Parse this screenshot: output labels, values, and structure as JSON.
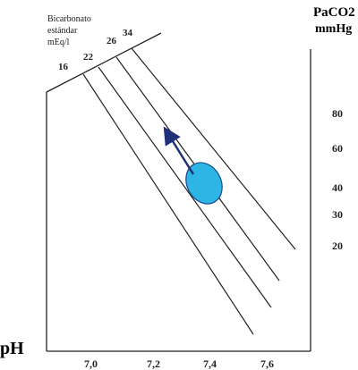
{
  "labels": {
    "paco2_title_line1": "PaCO2",
    "paco2_title_line2": "mmHg",
    "ph_title": "pH",
    "bicarbonate_title_line1": "Bicarbonato",
    "bicarbonate_title_line2": "estándar",
    "bicarbonate_title_line3": "mEq/l"
  },
  "paco2_ticks": [
    "80",
    "60",
    "40",
    "30",
    "20"
  ],
  "ph_ticks": [
    "7,0",
    "7,2",
    "7,4",
    "7,6"
  ],
  "bicarbonate_isopleths": [
    "16",
    "22",
    "26",
    "34"
  ],
  "colors": {
    "line": "#222222",
    "ellipse_fill": "#2db5e6",
    "ellipse_stroke": "#1a4a8c",
    "arrow": "#1f2f78"
  }
}
